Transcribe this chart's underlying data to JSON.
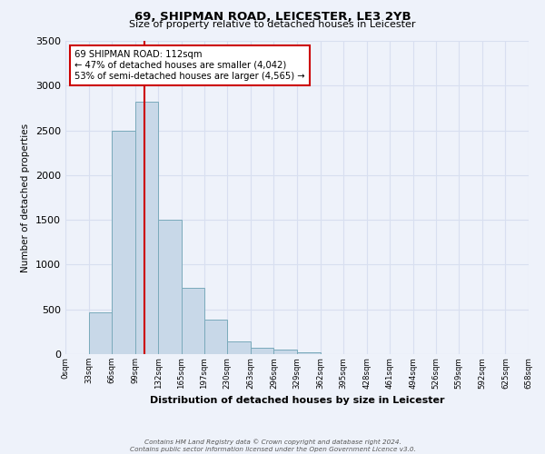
{
  "title": "69, SHIPMAN ROAD, LEICESTER, LE3 2YB",
  "subtitle": "Size of property relative to detached houses in Leicester",
  "xlabel": "Distribution of detached houses by size in Leicester",
  "ylabel": "Number of detached properties",
  "bin_labels": [
    "0sqm",
    "33sqm",
    "66sqm",
    "99sqm",
    "132sqm",
    "165sqm",
    "197sqm",
    "230sqm",
    "263sqm",
    "296sqm",
    "329sqm",
    "362sqm",
    "395sqm",
    "428sqm",
    "461sqm",
    "494sqm",
    "526sqm",
    "559sqm",
    "592sqm",
    "625sqm",
    "658sqm"
  ],
  "bar_values": [
    5,
    470,
    2500,
    2820,
    1500,
    740,
    390,
    145,
    75,
    55,
    25,
    0,
    0,
    0,
    0,
    0,
    0,
    0,
    0,
    0
  ],
  "bar_color": "#c8d8e8",
  "bar_edge_color": "#7aaabb",
  "ylim": [
    0,
    3500
  ],
  "yticks": [
    0,
    500,
    1000,
    1500,
    2000,
    2500,
    3000,
    3500
  ],
  "property_line_x": 112,
  "property_line_color": "#cc0000",
  "annotation_title": "69 SHIPMAN ROAD: 112sqm",
  "annotation_line1": "← 47% of detached houses are smaller (4,042)",
  "annotation_line2": "53% of semi-detached houses are larger (4,565) →",
  "annotation_box_color": "#ffffff",
  "annotation_box_edge": "#cc0000",
  "footer_line1": "Contains HM Land Registry data © Crown copyright and database right 2024.",
  "footer_line2": "Contains public sector information licensed under the Open Government Licence v3.0.",
  "bin_edges": [
    0,
    33,
    66,
    99,
    132,
    165,
    197,
    230,
    263,
    296,
    329,
    362,
    395,
    428,
    461,
    494,
    526,
    559,
    592,
    625,
    658
  ],
  "grid_color": "#d8dff0",
  "background_color": "#eef2fa"
}
